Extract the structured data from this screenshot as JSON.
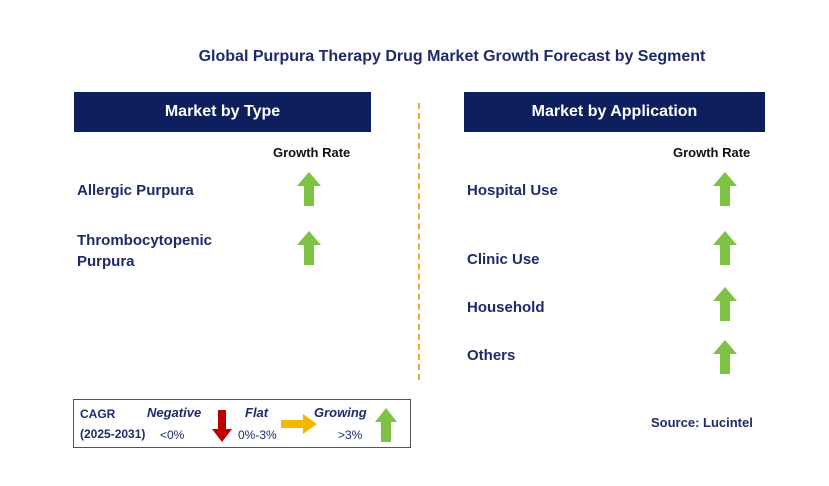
{
  "title": "Global Purpura Therapy Drug Market Growth Forecast by Segment",
  "left_panel": {
    "header": "Market by Type",
    "growth_rate_label": "Growth Rate",
    "items": [
      {
        "label": "Allergic Purpura",
        "trend": "growing"
      },
      {
        "label_line1": "Thrombocytopenic",
        "label_line2": "Purpura",
        "trend": "growing"
      }
    ]
  },
  "right_panel": {
    "header": "Market by Application",
    "growth_rate_label": "Growth Rate",
    "items": [
      {
        "label": "Hospital Use",
        "trend": "growing"
      },
      {
        "label": "Clinic Use",
        "trend": "growing"
      },
      {
        "label": "Household",
        "trend": "growing"
      },
      {
        "label": "Others",
        "trend": "growing"
      }
    ]
  },
  "legend": {
    "cagr_label": "CAGR",
    "period": "(2025-2031)",
    "negative_label": "Negative",
    "negative_range": "<0%",
    "flat_label": "Flat",
    "flat_range": "0%-3%",
    "growing_label": "Growing",
    "growing_range": ">3%"
  },
  "source": "Source: Lucintel",
  "colors": {
    "header_bg": "#0d1f5c",
    "growing": "#7dc242",
    "negative": "#c00000",
    "flat": "#f5b800",
    "divider": "#f0a830"
  }
}
